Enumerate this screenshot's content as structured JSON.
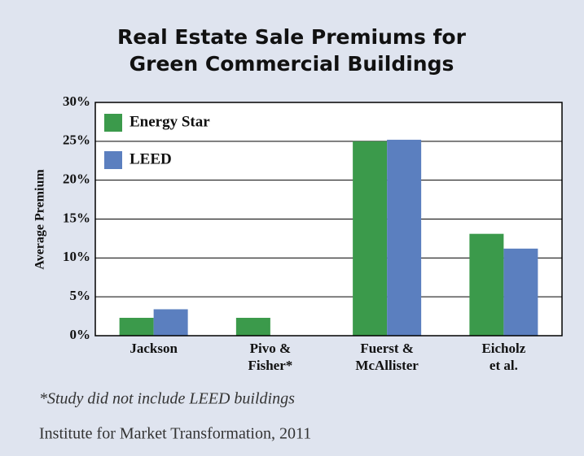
{
  "chart_data": {
    "type": "bar",
    "title": [
      "Real Estate Sale Premiums for",
      "Green Commercial Buildings"
    ],
    "y_label": "Average Premium",
    "categories": [
      [
        "Jackson"
      ],
      [
        "Pivo &",
        "Fisher*"
      ],
      [
        "Fuerst &",
        "McAllister"
      ],
      [
        "Eicholz",
        "et al."
      ]
    ],
    "series": [
      {
        "name": "Energy Star",
        "color": "#3b9a4b",
        "values": [
          2.3,
          2.3,
          25.0,
          13.1
        ]
      },
      {
        "name": "LEED",
        "color": "#5b7fbf",
        "values": [
          3.4,
          null,
          25.2,
          11.2
        ]
      }
    ],
    "ylim": [
      0,
      30
    ],
    "yticks": [
      {
        "value": 0,
        "label": "0%"
      },
      {
        "value": 5,
        "label": "5%"
      },
      {
        "value": 10,
        "label": "10%"
      },
      {
        "value": 15,
        "label": "15%"
      },
      {
        "value": 20,
        "label": "20%"
      },
      {
        "value": 25,
        "label": "25%"
      },
      {
        "value": 30,
        "label": "30%"
      }
    ],
    "grid": true,
    "legend": "top-left",
    "notes": [
      "*Study did not include LEED buildings",
      "Institute for Market Transformation, 2011"
    ]
  }
}
